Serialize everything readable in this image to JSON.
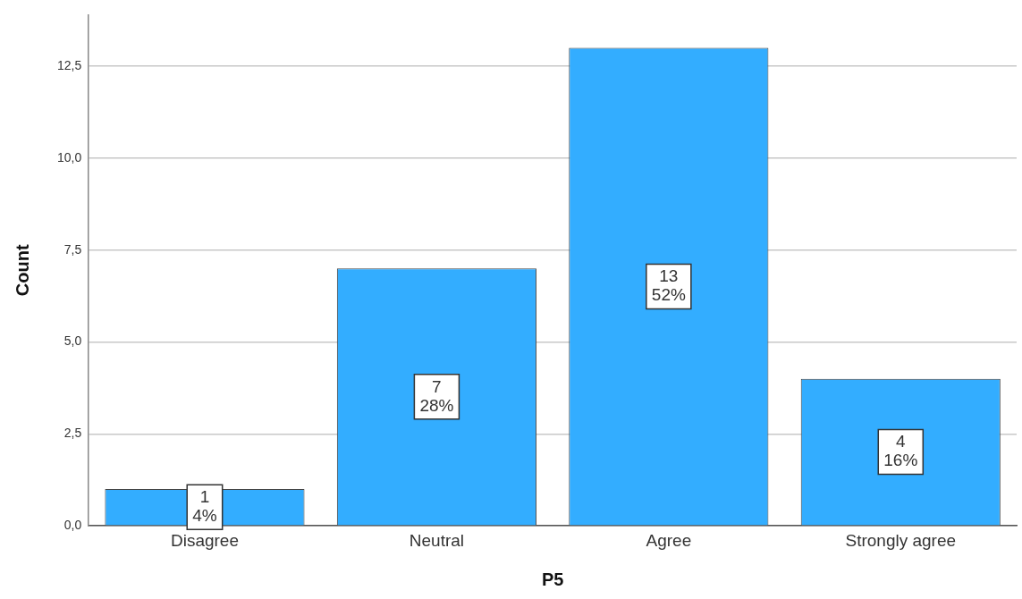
{
  "chart_data": {
    "type": "bar",
    "xlabel": "P5",
    "ylabel": "Count",
    "categories": [
      "Disagree",
      "Neutral",
      "Agree",
      "Strongly agree"
    ],
    "values": [
      1,
      7,
      13,
      4
    ],
    "color": "#33adff",
    "value_labels": [
      "1\n4%",
      "7\n28%",
      "13\n52%",
      "4\n16%"
    ],
    "ylim": [
      0,
      13.9
    ],
    "yticks": [
      {
        "value": 0,
        "label": "0,0"
      },
      {
        "value": 2.5,
        "label": "2,5"
      },
      {
        "value": 5,
        "label": "5,0"
      },
      {
        "value": 7.5,
        "label": "7,5"
      },
      {
        "value": 10,
        "label": "10,0"
      },
      {
        "value": 12.5,
        "label": "12,5"
      }
    ],
    "grid": "y",
    "legend": false
  }
}
